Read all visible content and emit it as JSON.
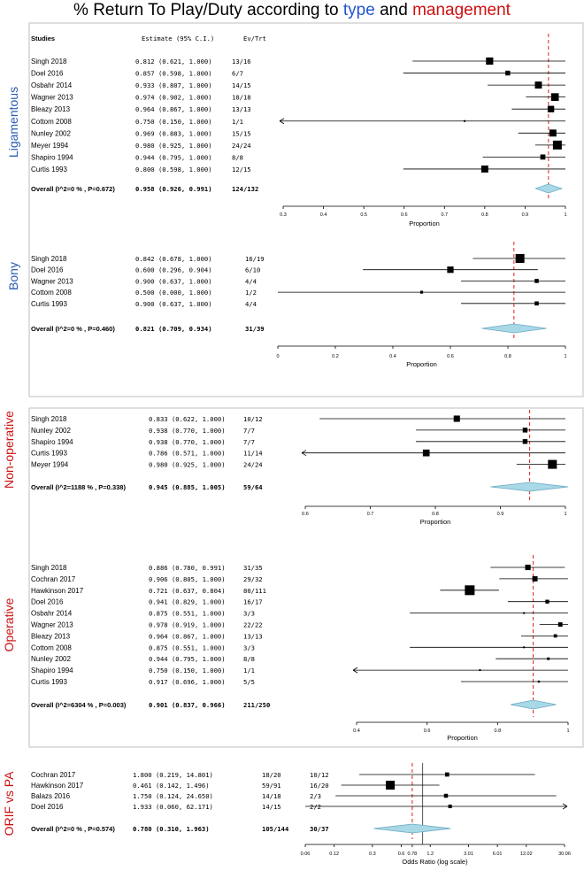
{
  "title": {
    "prefix": "% Return To Play/Duty according to ",
    "type_word": "type",
    "middle": " and ",
    "management_word": "management",
    "type_color": "#2255cc",
    "management_color": "#cc1111"
  },
  "colors": {
    "type_label": "#2a5db0",
    "management_label": "#cc1111",
    "reference_line": "#dd2222",
    "diamond_fill": "#a9d8e6",
    "diamond_stroke": "#6aaac4"
  },
  "chart_data": [
    {
      "type": "forest",
      "group_label": "Ligamentous",
      "header": {
        "studies": "Studies",
        "estimate": "Estimate (95% C.I.)",
        "events": "Ev/Trt"
      },
      "xlabel": "Proportion",
      "ticks": [
        0.3,
        0.4,
        0.5,
        0.6,
        0.7,
        0.8,
        0.9,
        1
      ],
      "tick_labels": [
        "0.3",
        "0.4",
        "0.5",
        "0.6",
        "0.7",
        "0.8",
        "0.9",
        "1"
      ],
      "xlim": [
        0.3,
        1.0
      ],
      "studies": [
        {
          "name": "Singh 2018",
          "estimate": 0.812,
          "lower": 0.621,
          "upper": 1.0,
          "estimate_text": "0.812 (0.621, 1.000)",
          "events": "13/16"
        },
        {
          "name": "Doel 2016",
          "estimate": 0.857,
          "lower": 0.598,
          "upper": 1.0,
          "estimate_text": "0.857 (0.598, 1.000)",
          "events": "6/7"
        },
        {
          "name": "Osbahr 2014",
          "estimate": 0.933,
          "lower": 0.807,
          "upper": 1.0,
          "estimate_text": "0.933 (0.807, 1.000)",
          "events": "14/15"
        },
        {
          "name": "Wagner 2013",
          "estimate": 0.974,
          "lower": 0.902,
          "upper": 1.0,
          "estimate_text": "0.974 (0.902, 1.000)",
          "events": "18/18"
        },
        {
          "name": "Bleazy 2013",
          "estimate": 0.964,
          "lower": 0.867,
          "upper": 1.0,
          "estimate_text": "0.964 (0.867, 1.000)",
          "events": "13/13"
        },
        {
          "name": "Cottom 2008",
          "estimate": 0.75,
          "lower": 0.15,
          "upper": 1.0,
          "estimate_text": "0.750 (0.150, 1.000)",
          "events": "1/1"
        },
        {
          "name": "Nunley 2002",
          "estimate": 0.969,
          "lower": 0.883,
          "upper": 1.0,
          "estimate_text": "0.969 (0.883, 1.000)",
          "events": "15/15"
        },
        {
          "name": "Meyer 1994",
          "estimate": 0.98,
          "lower": 0.925,
          "upper": 1.0,
          "estimate_text": "0.980 (0.925, 1.000)",
          "events": "24/24"
        },
        {
          "name": "Shapiro 1994",
          "estimate": 0.944,
          "lower": 0.795,
          "upper": 1.0,
          "estimate_text": "0.944 (0.795, 1.000)",
          "events": "8/8"
        },
        {
          "name": "Curtis 1993",
          "estimate": 0.8,
          "lower": 0.598,
          "upper": 1.0,
          "estimate_text": "0.800 (0.598, 1.000)",
          "events": "12/15"
        }
      ],
      "overall": {
        "label": "Overall (I^2=0 % , P=0.672)",
        "estimate": 0.958,
        "lower": 0.926,
        "upper": 0.991,
        "estimate_text": "0.958 (0.926, 0.991)",
        "events": "124/132"
      },
      "reference": 0.958
    },
    {
      "type": "forest",
      "group_label": "Bony",
      "xlabel": "Proportion",
      "ticks": [
        0,
        0.2,
        0.4,
        0.6,
        0.8,
        1
      ],
      "tick_labels": [
        "0",
        "0.2",
        "0.4",
        "0.6",
        "0.8",
        "1"
      ],
      "xlim": [
        0,
        1
      ],
      "studies": [
        {
          "name": "Singh 2018",
          "estimate": 0.842,
          "lower": 0.678,
          "upper": 1.0,
          "estimate_text": "0.842 (0.678, 1.000)",
          "events": "16/19"
        },
        {
          "name": "Doel 2016",
          "estimate": 0.6,
          "lower": 0.296,
          "upper": 0.904,
          "estimate_text": "0.600 (0.296, 0.904)",
          "events": "6/10"
        },
        {
          "name": "Wagner 2013",
          "estimate": 0.9,
          "lower": 0.637,
          "upper": 1.0,
          "estimate_text": "0.900 (0.637, 1.000)",
          "events": "4/4"
        },
        {
          "name": "Cottom 2008",
          "estimate": 0.5,
          "lower": 0.0,
          "upper": 1.0,
          "estimate_text": "0.500 (0.000, 1.000)",
          "events": "1/2"
        },
        {
          "name": "Curtis 1993",
          "estimate": 0.9,
          "lower": 0.637,
          "upper": 1.0,
          "estimate_text": "0.900 (0.637, 1.000)",
          "events": "4/4"
        }
      ],
      "overall": {
        "label": "Overall (I^2=0 % , P=0.460)",
        "estimate": 0.821,
        "lower": 0.709,
        "upper": 0.934,
        "estimate_text": "0.821 (0.709, 0.934)",
        "events": "31/39"
      },
      "reference": 0.821
    },
    {
      "type": "forest",
      "group_label": "Non-operative",
      "xlabel": "Proportion",
      "ticks": [
        0.6,
        0.7,
        0.8,
        0.9,
        1
      ],
      "tick_labels": [
        "0.6",
        "0.7",
        "0.8",
        "0.9",
        "1"
      ],
      "xlim": [
        0.6,
        1.0
      ],
      "studies": [
        {
          "name": "Singh 2018",
          "estimate": 0.833,
          "lower": 0.622,
          "upper": 1.0,
          "estimate_text": "0.833 (0.622, 1.000)",
          "events": "10/12"
        },
        {
          "name": "Nunley 2002",
          "estimate": 0.938,
          "lower": 0.77,
          "upper": 1.0,
          "estimate_text": "0.938 (0.770, 1.000)",
          "events": "7/7"
        },
        {
          "name": "Shapiro 1994",
          "estimate": 0.938,
          "lower": 0.77,
          "upper": 1.0,
          "estimate_text": "0.938 (0.770, 1.000)",
          "events": "7/7"
        },
        {
          "name": "Curtis 1993",
          "estimate": 0.786,
          "lower": 0.571,
          "upper": 1.0,
          "estimate_text": "0.786 (0.571, 1.000)",
          "events": "11/14"
        },
        {
          "name": "Meyer 1994",
          "estimate": 0.98,
          "lower": 0.925,
          "upper": 1.0,
          "estimate_text": "0.980 (0.925, 1.000)",
          "events": "24/24"
        }
      ],
      "overall": {
        "label": "Overall (I^2=1188 % , P=0.338)",
        "estimate": 0.945,
        "lower": 0.885,
        "upper": 1.005,
        "estimate_text": "0.945 (0.885, 1.005)",
        "events": "59/64"
      },
      "reference": 0.945
    },
    {
      "type": "forest",
      "group_label": "Operative",
      "xlabel": "Proportion",
      "ticks": [
        0.4,
        0.6,
        0.8,
        1
      ],
      "tick_labels": [
        "0.4",
        "0.6",
        "0.8",
        "1"
      ],
      "xlim": [
        0.4,
        1.0
      ],
      "studies": [
        {
          "name": "Singh 2018",
          "estimate": 0.886,
          "lower": 0.78,
          "upper": 0.991,
          "estimate_text": "0.886 (0.780, 0.991)",
          "events": "31/35"
        },
        {
          "name": "Cochran 2017",
          "estimate": 0.906,
          "lower": 0.805,
          "upper": 1.0,
          "estimate_text": "0.906 (0.805, 1.000)",
          "events": "29/32"
        },
        {
          "name": "Hawkinson 2017",
          "estimate": 0.721,
          "lower": 0.637,
          "upper": 0.804,
          "estimate_text": "0.721 (0.637, 0.804)",
          "events": "80/111"
        },
        {
          "name": "Doel 2016",
          "estimate": 0.941,
          "lower": 0.829,
          "upper": 1.0,
          "estimate_text": "0.941 (0.829, 1.000)",
          "events": "16/17"
        },
        {
          "name": "Osbahr 2014",
          "estimate": 0.875,
          "lower": 0.551,
          "upper": 1.0,
          "estimate_text": "0.875 (0.551, 1.000)",
          "events": "3/3"
        },
        {
          "name": "Wagner 2013",
          "estimate": 0.978,
          "lower": 0.919,
          "upper": 1.0,
          "estimate_text": "0.978 (0.919, 1.000)",
          "events": "22/22"
        },
        {
          "name": "Bleazy 2013",
          "estimate": 0.964,
          "lower": 0.867,
          "upper": 1.0,
          "estimate_text": "0.964 (0.867, 1.000)",
          "events": "13/13"
        },
        {
          "name": "Cottom 2008",
          "estimate": 0.875,
          "lower": 0.551,
          "upper": 1.0,
          "estimate_text": "0.875 (0.551, 1.000)",
          "events": "3/3"
        },
        {
          "name": "Nunley 2002",
          "estimate": 0.944,
          "lower": 0.795,
          "upper": 1.0,
          "estimate_text": "0.944 (0.795, 1.000)",
          "events": "8/8"
        },
        {
          "name": "Shapiro 1994",
          "estimate": 0.75,
          "lower": 0.15,
          "upper": 1.0,
          "estimate_text": "0.750 (0.150, 1.000)",
          "events": "1/1"
        },
        {
          "name": "Curtis 1993",
          "estimate": 0.917,
          "lower": 0.696,
          "upper": 1.0,
          "estimate_text": "0.917 (0.696, 1.000)",
          "events": "5/5"
        }
      ],
      "overall": {
        "label": "Overall (I^2=6304 % , P=0.003)",
        "estimate": 0.901,
        "lower": 0.837,
        "upper": 0.966,
        "estimate_text": "0.901 (0.837, 0.966)",
        "events": "211/250"
      },
      "reference": 0.901
    },
    {
      "type": "forest",
      "group_label": "ORIF vs PA",
      "xlabel": "Odds Ratio (log scale)",
      "log": true,
      "ticks": [
        0.06,
        0.12,
        0.3,
        0.6,
        0.78,
        1.2,
        3.01,
        6.01,
        12.02,
        30.06
      ],
      "tick_labels": [
        "0.06",
        "0.12",
        "0.3",
        "0.6",
        "0.78",
        "1.2",
        "3.01",
        "6.01",
        "12.02",
        "30.06"
      ],
      "xlim": [
        0.06,
        30.06
      ],
      "null_line": 1,
      "studies": [
        {
          "name": "Cochran 2017",
          "estimate": 1.8,
          "lower": 0.219,
          "upper": 14.801,
          "estimate_text": "1.800 (0.219, 14.801)",
          "events": "18/20",
          "events2": "10/12"
        },
        {
          "name": "Hawkinson 2017",
          "estimate": 0.461,
          "lower": 0.142,
          "upper": 1.496,
          "estimate_text": "0.461 (0.142, 1.496)",
          "events": "59/91",
          "events2": "16/20"
        },
        {
          "name": "Balazs 2016",
          "estimate": 1.75,
          "lower": 0.124,
          "upper": 24.65,
          "estimate_text": "1.750 (0.124, 24.650)",
          "events": "14/18",
          "events2": "2/3"
        },
        {
          "name": "Doel 2016",
          "estimate": 1.933,
          "lower": 0.06,
          "upper": 62.171,
          "estimate_text": "1.933 (0.060, 62.171)",
          "events": "14/15",
          "events2": "2/2"
        }
      ],
      "overall": {
        "label": "Overall (I^2=0 % , P=0.574)",
        "estimate": 0.78,
        "lower": 0.31,
        "upper": 1.963,
        "estimate_text": "0.780 (0.310, 1.963)",
        "events": "105/144",
        "events2": "30/37"
      },
      "reference": 0.78
    }
  ]
}
